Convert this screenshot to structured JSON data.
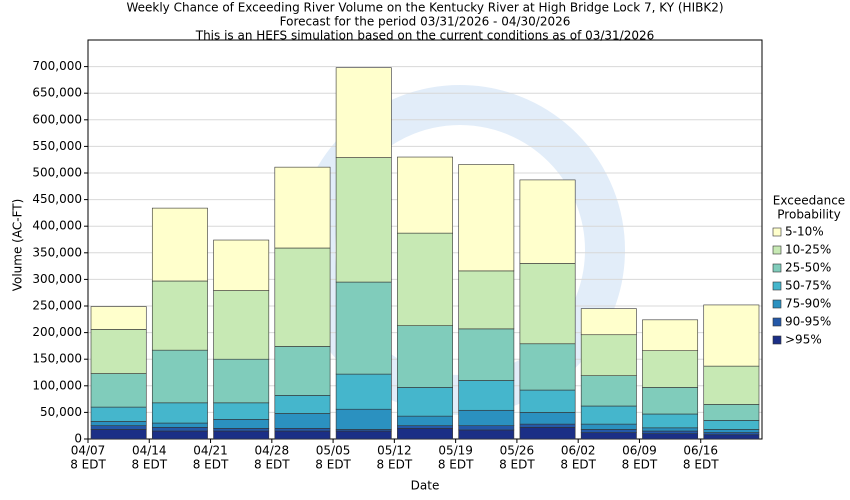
{
  "chart_data": {
    "type": "stacked_bar",
    "title": "Weekly Chance of Exceeding River Volume on the Kentucky River at High Bridge Lock 7, KY (HIBK2)",
    "subtitle": [
      "Forecast for the period 03/31/2026 - 04/30/2026",
      "This is an HEFS simulation based on the current conditions as of 03/31/2026"
    ],
    "x_label": "Date",
    "y_label": "Volume (AC-FT)",
    "categories": [
      "04/07",
      "04/14",
      "04/21",
      "04/28",
      "05/05",
      "05/12",
      "05/19",
      "05/26",
      "06/02",
      "06/09",
      "06/16"
    ],
    "x_tick_sublabel": "8 EDT",
    "legend_title": [
      "Exceedance",
      "Probability"
    ],
    "series": [
      {
        "name": ">95%",
        "color": "#1b2f86",
        "values": [
          18000,
          15000,
          15000,
          15000,
          15000,
          20000,
          17000,
          22000,
          12000,
          10000,
          8000
        ]
      },
      {
        "name": "90-95%",
        "color": "#2458a8",
        "values": [
          7000,
          7000,
          5000,
          5000,
          3000,
          5000,
          8000,
          6000,
          6000,
          5000,
          4000
        ]
      },
      {
        "name": "75-90%",
        "color": "#2b91c0",
        "values": [
          8000,
          8000,
          17000,
          28000,
          38000,
          18000,
          29000,
          22000,
          10000,
          6000,
          6000
        ]
      },
      {
        "name": "50-75%",
        "color": "#45b6cc",
        "values": [
          27000,
          38000,
          31000,
          34000,
          66000,
          54000,
          56000,
          42000,
          34000,
          26000,
          17000
        ]
      },
      {
        "name": "25-50%",
        "color": "#80ccbb",
        "values": [
          63000,
          99000,
          82000,
          92000,
          173000,
          116000,
          97000,
          87000,
          57000,
          50000,
          30000
        ]
      },
      {
        "name": "10-25%",
        "color": "#c7e9b4",
        "values": [
          83000,
          130000,
          129000,
          185000,
          234000,
          174000,
          109000,
          151000,
          77000,
          69000,
          72000
        ]
      },
      {
        "name": "5-10%",
        "color": "#ffffcc",
        "values": [
          43000,
          137000,
          95000,
          152000,
          169000,
          143000,
          200000,
          157000,
          49000,
          58000,
          115000
        ]
      }
    ],
    "ylim": [
      0,
      750000
    ],
    "yticks": [
      0,
      {
        "value": 50000,
        "label": "50,000"
      },
      {
        "value": 100000,
        "label": "100,000"
      },
      {
        "value": 150000,
        "label": "150,000"
      },
      {
        "value": 200000,
        "label": "200,000"
      },
      {
        "value": 250000,
        "label": "250,000"
      },
      {
        "value": 300000,
        "label": "300,000"
      },
      {
        "value": 350000,
        "label": "350,000"
      },
      {
        "value": 400000,
        "label": "400,000"
      },
      {
        "value": 450000,
        "label": "450,000"
      },
      {
        "value": 500000,
        "label": "500,000"
      },
      {
        "value": 550000,
        "label": "550,000"
      },
      {
        "value": 600000,
        "label": "600,000"
      },
      {
        "value": 650000,
        "label": "650,000"
      },
      {
        "value": 700000,
        "label": "700,000"
      }
    ],
    "grid": true,
    "legend": "right"
  }
}
